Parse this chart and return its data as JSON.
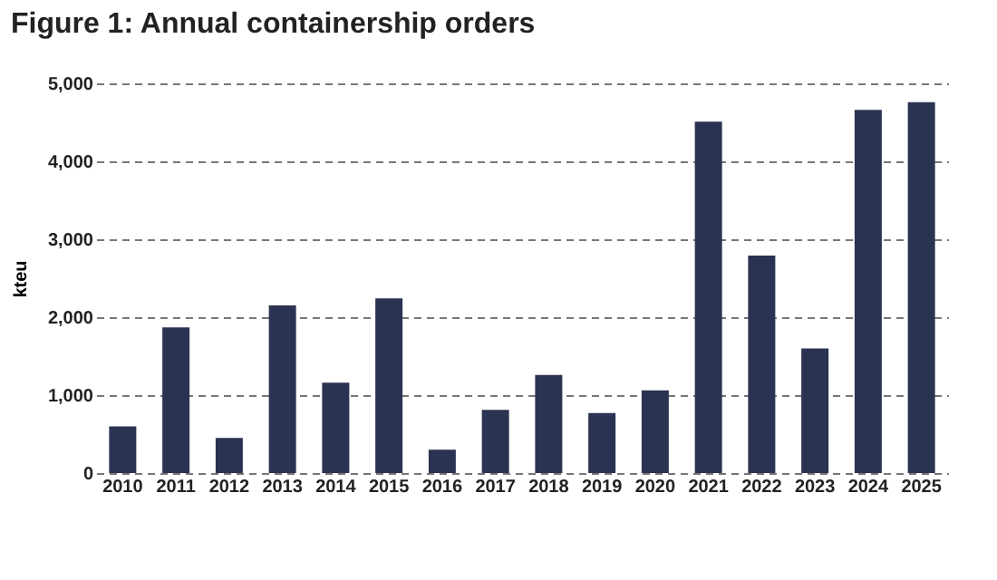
{
  "chart_data": {
    "type": "bar",
    "title": "Figure 1: Annual containership orders",
    "ylabel": "kteu",
    "categories": [
      "2010",
      "2011",
      "2012",
      "2013",
      "2014",
      "2015",
      "2016",
      "2017",
      "2018",
      "2019",
      "2020",
      "2021",
      "2022",
      "2023",
      "2024",
      "2025"
    ],
    "values": [
      600,
      1870,
      450,
      2150,
      1160,
      2240,
      300,
      810,
      1260,
      770,
      1060,
      4510,
      2790,
      1600,
      4660,
      4760
    ],
    "color": "#2b3352",
    "ylim": [
      0,
      5000
    ],
    "yticks": [
      0,
      {
        "value": 1000,
        "label": "1,000"
      },
      {
        "value": 2000,
        "label": "2,000"
      },
      {
        "value": 3000,
        "label": "3,000"
      },
      {
        "value": 4000,
        "label": "4,000"
      },
      {
        "value": 5000,
        "label": "5,000"
      }
    ],
    "grid": "y",
    "line_style": "dashed"
  }
}
